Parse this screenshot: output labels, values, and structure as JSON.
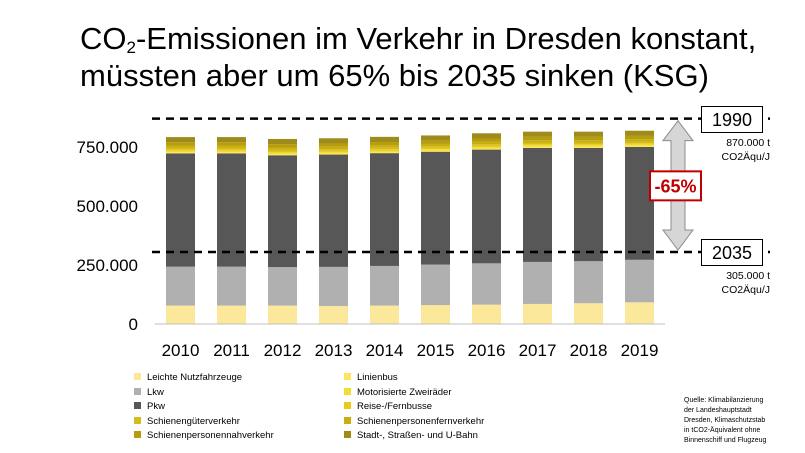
{
  "title": {
    "line1_pre": "CO",
    "line1_sub": "2",
    "line1_post": "-Emissionen im Verkehr in Dresden konstant,",
    "line2": "müssten aber um 65% bis 2035 sinken (KSG)"
  },
  "chart_data": {
    "type": "bar",
    "stacked": true,
    "categories": [
      "2010",
      "2011",
      "2012",
      "2013",
      "2014",
      "2015",
      "2016",
      "2017",
      "2018",
      "2019"
    ],
    "ylim": [
      0,
      950000
    ],
    "yticks": [
      0,
      250000,
      500000,
      750000
    ],
    "ytick_labels": [
      "0",
      "250.000",
      "500.000",
      "750.000"
    ],
    "series": [
      {
        "name": "Leichte Nutzfahrzeuge",
        "color": "#fbe89a",
        "values": [
          78000,
          78000,
          78000,
          76000,
          78000,
          80000,
          82000,
          85000,
          88000,
          92000
        ]
      },
      {
        "name": "Lkw",
        "color": "#b0b0b0",
        "values": [
          165000,
          165000,
          163000,
          166000,
          168000,
          172000,
          175000,
          178000,
          178000,
          180000
        ]
      },
      {
        "name": "Pkw",
        "color": "#575757",
        "values": [
          480000,
          480000,
          474000,
          476000,
          478000,
          478000,
          482000,
          483000,
          480000,
          478000
        ]
      },
      {
        "name": "Linienbus",
        "color": "#fbe65c",
        "values": [
          5000,
          5000,
          5000,
          5000,
          5000,
          5000,
          5000,
          5000,
          5000,
          5000
        ]
      },
      {
        "name": "Motorisierte Zweiräder",
        "color": "#f4dd2e",
        "values": [
          6000,
          6000,
          6000,
          6000,
          6000,
          6000,
          6000,
          6000,
          6000,
          6000
        ]
      },
      {
        "name": "Reise-/Fernbusse",
        "color": "#e8cc18",
        "values": [
          5000,
          5000,
          5000,
          5000,
          5000,
          5000,
          5000,
          5000,
          5000,
          5000
        ]
      },
      {
        "name": "Schienengüterverkehr",
        "color": "#d4bc1c",
        "values": [
          7000,
          7000,
          7000,
          7000,
          7000,
          7000,
          7000,
          7000,
          7000,
          7000
        ]
      },
      {
        "name": "Schienenpersonenfernverkehr",
        "color": "#c9ae10",
        "values": [
          10000,
          10000,
          10000,
          10000,
          10000,
          10000,
          10000,
          10000,
          10000,
          10000
        ]
      },
      {
        "name": "Schienenpersonennahverkehr",
        "color": "#b59d0c",
        "values": [
          14000,
          14000,
          14000,
          14000,
          14000,
          14000,
          14000,
          14000,
          14000,
          14000
        ]
      },
      {
        "name": "Stadt-, Straßen- und U-Bahn",
        "color": "#9f8b1a",
        "values": [
          22000,
          22000,
          22000,
          22000,
          22000,
          22000,
          22000,
          22000,
          22000,
          22000
        ]
      }
    ],
    "reference_lines": [
      {
        "label": "1990",
        "value": 870000,
        "note_line1": "870.000 t",
        "note_line2": "CO2Äqu/J"
      },
      {
        "label": "2035",
        "value": 305000,
        "note_line1": "305.000 t",
        "note_line2": "CO2Äqu/J"
      }
    ],
    "reduction_label": "-65%",
    "colors": {
      "arrow_fill": "#d6d6d6",
      "arrow_stroke": "#8c8c8c",
      "reduction_border": "#c00000",
      "reduction_text": "#c00000"
    }
  },
  "legend": [
    {
      "label": "Leichte Nutzfahrzeuge",
      "color": "#fbe89a"
    },
    {
      "label": "Linienbus",
      "color": "#fbe65c"
    },
    {
      "label": "Lkw",
      "color": "#b0b0b0"
    },
    {
      "label": "Motorisierte Zweiräder",
      "color": "#f4dd2e"
    },
    {
      "label": "Pkw",
      "color": "#575757"
    },
    {
      "label": "Reise-/Fernbusse",
      "color": "#e8cc18"
    },
    {
      "label": "Schienengüterverkehr",
      "color": "#d4bc1c"
    },
    {
      "label": "Schienenpersonenfernverkehr",
      "color": "#c9ae10"
    },
    {
      "label": "Schienenpersonennahverkehr",
      "color": "#b59d0c"
    },
    {
      "label": "Stadt-, Straßen- und U-Bahn",
      "color": "#9f8b1a"
    }
  ],
  "source": {
    "lines": [
      "Quelle: Klimabilanzierung",
      "der Landeshauptstadt",
      "Dresden, Klimaschutzstab",
      "in tCO2-Äquivalent ohne",
      "Binnenschiff und Flugzeug"
    ]
  }
}
